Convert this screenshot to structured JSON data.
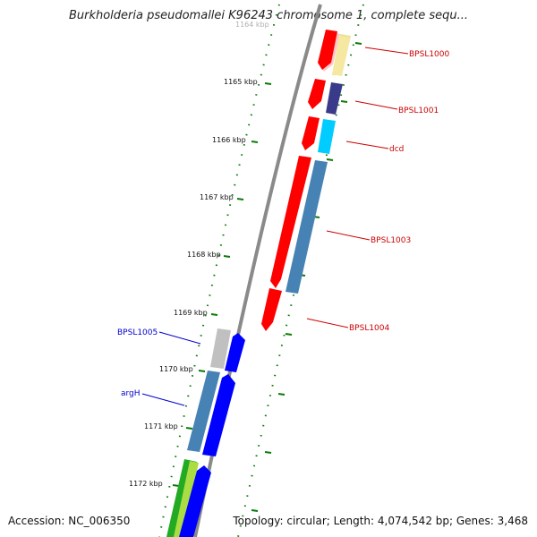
{
  "title": "Burkholderia pseudomallei K96243 chromosome 1, complete sequ...",
  "footer": {
    "accession": "Accession: NC_006350",
    "topology": "Topology: circular; Length: 4,074,542 bp; Genes: 3,468"
  },
  "colors": {
    "backbone": "#7f7f7f",
    "tick": "#0a7a0a",
    "forward_label": "#cc0000",
    "reverse_label": "#0000cc"
  },
  "ticks": [
    {
      "label": "1164 kbp",
      "faded": true
    },
    {
      "label": "1165 kbp"
    },
    {
      "label": "1166 kbp"
    },
    {
      "label": "1167 kbp"
    },
    {
      "label": "1168 kbp"
    },
    {
      "label": "1169 kbp"
    },
    {
      "label": "1170 kbp"
    },
    {
      "label": "1171 kbp"
    },
    {
      "label": "1172 kbp"
    }
  ],
  "genes": [
    {
      "label": "BPSL1000",
      "strand": "forward"
    },
    {
      "label": "BPSL1001",
      "strand": "forward"
    },
    {
      "label": "dcd",
      "strand": "forward"
    },
    {
      "label": "BPSL1003",
      "strand": "forward"
    },
    {
      "label": "BPSL1004",
      "strand": "forward"
    },
    {
      "label": "BPSL1005",
      "strand": "reverse"
    },
    {
      "label": "argH",
      "strand": "reverse"
    }
  ]
}
